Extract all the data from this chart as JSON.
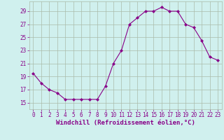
{
  "hours": [
    0,
    1,
    2,
    3,
    4,
    5,
    6,
    7,
    8,
    9,
    10,
    11,
    12,
    13,
    14,
    15,
    16,
    17,
    18,
    19,
    20,
    21,
    22,
    23
  ],
  "values": [
    19.5,
    18.0,
    17.0,
    16.5,
    15.5,
    15.5,
    15.5,
    15.5,
    15.5,
    17.5,
    21.0,
    23.0,
    27.0,
    28.0,
    29.0,
    29.0,
    29.6,
    29.0,
    29.0,
    27.0,
    26.5,
    24.5,
    22.0,
    21.5
  ],
  "line_color": "#880088",
  "marker": "D",
  "marker_size": 2.0,
  "bg_color": "#d0f0ee",
  "grid_color": "#aabbaa",
  "ylabel_ticks": [
    15,
    17,
    19,
    21,
    23,
    25,
    27,
    29
  ],
  "ylim": [
    14.0,
    30.5
  ],
  "xlim": [
    -0.5,
    23.5
  ],
  "xlabel": "Windchill (Refroidissement éolien,°C)",
  "line_width": 0.8,
  "tick_fontsize": 5.5,
  "xlabel_fontsize": 6.5
}
